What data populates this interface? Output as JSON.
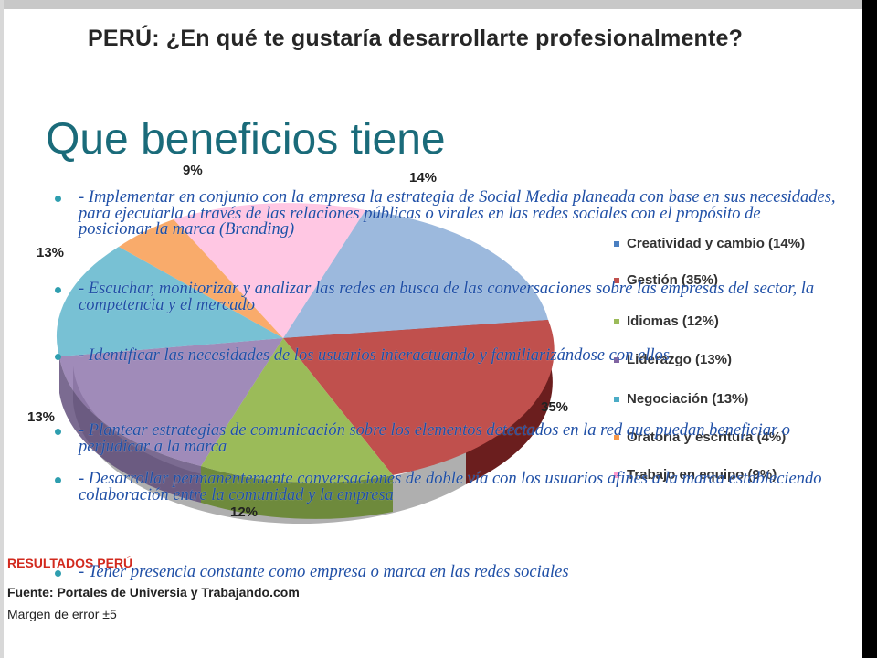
{
  "background_image": {
    "title": "PERÚ: ¿En qué te gustaría desarrollarte profesionalmente?",
    "pie_labels": [
      "9%",
      "14%",
      "13%",
      "13%",
      "35%",
      "12%"
    ],
    "legend": [
      {
        "label": "Creatividad y cambio (14%)",
        "color": "#4a7fc1"
      },
      {
        "label": "Gestión (35%)",
        "color": "#c0504d"
      },
      {
        "label": "Idiomas (12%)",
        "color": "#9bbb59"
      },
      {
        "label": "Liderazgo (13%)",
        "color": "#8064a2"
      },
      {
        "label": "Negociación (13%)",
        "color": "#4bacc6"
      },
      {
        "label": "Oratoria y escritura (4%)",
        "color": "#f79646"
      },
      {
        "label": "Trabajo en equipo (9%)",
        "color": "#ff99cc"
      }
    ],
    "source_lines": [
      "RESULTADOS PERÚ",
      "Fuente: Portales de Universia y Trabajando.com",
      "Margen de error ±5"
    ]
  },
  "slide": {
    "heading": "Que beneficios tiene",
    "bullets": [
      "- Implementar en conjunto con la empresa  la estrategia de Social Media planeada con base en sus necesidades, para ejecutarla a través de las relaciones públicas o virales en las redes sociales con el propósito de posicionar la marca (Branding)",
      "- Escuchar, monitorizar y analizar las redes en busca de las conversaciones sobre las empresas del sector, la competencia y el mercado",
      "- Identificar las necesidades de los usuarios interactuando y familiarizándose con ellos",
      "- Plantear estrategias de comunicación sobre los elementos detectados en la red que puedan beneficiar o perjudicar a la marca",
      "- Desarrollar permanentemente conversaciones de doble vía con los usuarios afines a la marca estableciendo colaboración entre la comunidad y la empresa",
      "- Tener presencia constante como empresa o marca en las redes sociales"
    ]
  },
  "colors": {
    "heading": "#1a6b7a",
    "bullet_text": "#1f4fa6",
    "bullet_dot": "#2e9eaf",
    "gestion": "#c0504d",
    "idiomas": "#9bbb59",
    "liderazgo": "#8064a2",
    "negociacion": "#4bacc6",
    "creatividad": "#4a7fc1",
    "oratoria": "#f79646",
    "trabajo": "#ff99cc"
  }
}
